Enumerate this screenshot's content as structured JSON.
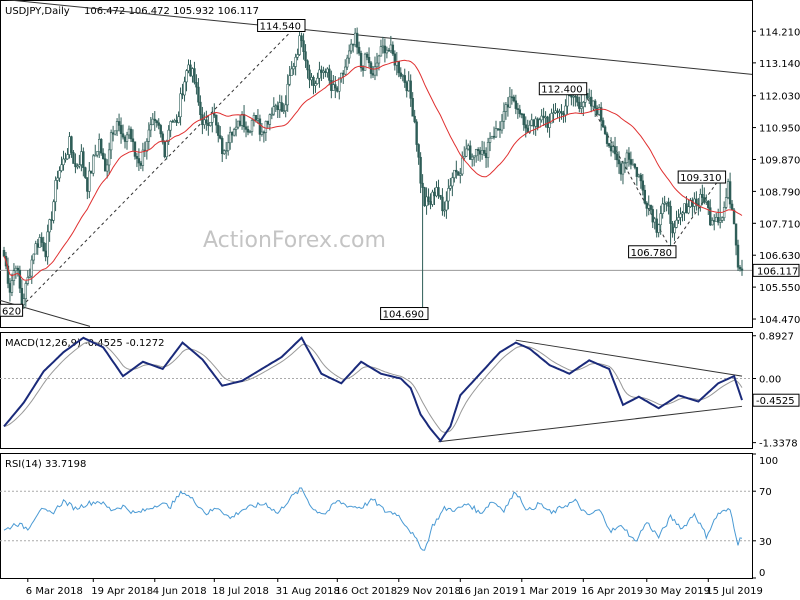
{
  "chart_data": {
    "type": "candlestick",
    "header": {
      "symbol": "USDJPY,Daily",
      "ohlc": "106.472 106.472 105.932 106.117"
    },
    "watermark": "ActionForex.com",
    "price_panel": {
      "ylim": [
        104.2,
        115.2
      ],
      "y_ticks": [
        {
          "v": 114.21,
          "t": "114.210"
        },
        {
          "v": 113.14,
          "t": "113.140"
        },
        {
          "v": 112.03,
          "t": "112.030"
        },
        {
          "v": 110.95,
          "t": "110.950"
        },
        {
          "v": 109.87,
          "t": "109.870"
        },
        {
          "v": 108.79,
          "t": "108.790"
        },
        {
          "v": 107.71,
          "t": "107.710"
        },
        {
          "v": 106.63,
          "t": "106.630"
        },
        {
          "v": 105.55,
          "t": "105.550"
        },
        {
          "v": 104.47,
          "t": "104.470"
        }
      ],
      "current_price": {
        "v": 106.117,
        "t": "106.117"
      },
      "annotations": [
        {
          "x": 0,
          "v": 104.8,
          "t": "620",
          "color": "#000000"
        },
        {
          "x": 149,
          "v": 114.54,
          "t": "114.540",
          "color": "#000000"
        },
        {
          "x": 211,
          "v": 104.69,
          "t": "104.690",
          "color": "#000000"
        },
        {
          "x": 291,
          "v": 112.4,
          "t": "112.400",
          "color": "#000000"
        },
        {
          "x": 336,
          "v": 106.78,
          "t": "106.780",
          "color": "#000000"
        },
        {
          "x": 361,
          "v": 109.31,
          "t": "109.310",
          "color": "#000000"
        }
      ],
      "ma_color": "#e03030",
      "candle_color": "#2e5d57"
    },
    "macd_panel": {
      "title": "MACD(12,26,9) -0.4525 -0.1272",
      "ylim": [
        -1.45,
        0.95
      ],
      "y_ticks": [
        {
          "v": 0.8927,
          "t": "0.8927"
        },
        {
          "v": 0,
          "t": "0.00"
        },
        {
          "v": -1.3378,
          "t": "-1.3378"
        }
      ],
      "current": {
        "v": -0.4525,
        "t": "-0.4525"
      },
      "macd_color": "#1a2a7a",
      "signal_color": "#999999"
    },
    "rsi_panel": {
      "title": "RSI(14) 33.7198",
      "ylim": [
        0,
        100
      ],
      "y_ticks": [
        {
          "v": 100,
          "t": "100"
        },
        {
          "v": 70,
          "t": "70"
        },
        {
          "v": 30,
          "t": "30"
        },
        {
          "v": 0,
          "t": "0"
        }
      ],
      "rsi_color": "#4a9ad4"
    },
    "x_labels": [
      {
        "x": 12,
        "t": "6 Mar 2018"
      },
      {
        "x": 45,
        "t": "19 Apr 2018"
      },
      {
        "x": 76,
        "t": "4 Jun 2018"
      },
      {
        "x": 106,
        "t": "18 Jul 2018"
      },
      {
        "x": 138,
        "t": "31 Aug 2018"
      },
      {
        "x": 168,
        "t": "16 Oct 2018"
      },
      {
        "x": 199,
        "t": "29 Nov 2018"
      },
      {
        "x": 230,
        "t": "16 Jan 2019"
      },
      {
        "x": 261,
        "t": "1 Mar 2019"
      },
      {
        "x": 292,
        "t": "16 Apr 2019"
      },
      {
        "x": 324,
        "t": "30 May 2019"
      },
      {
        "x": 355,
        "t": "15 Jul 2019"
      }
    ],
    "price_waypoints": [
      [
        0,
        106.6
      ],
      [
        3,
        105.5
      ],
      [
        6,
        106.4
      ],
      [
        9,
        105.0
      ],
      [
        12,
        105.8
      ],
      [
        15,
        106.8
      ],
      [
        18,
        107.2
      ],
      [
        21,
        106.8
      ],
      [
        24,
        108.0
      ],
      [
        27,
        109.4
      ],
      [
        30,
        109.8
      ],
      [
        33,
        110.4
      ],
      [
        36,
        109.6
      ],
      [
        39,
        110.0
      ],
      [
        42,
        109.0
      ],
      [
        45,
        109.8
      ],
      [
        48,
        110.5
      ],
      [
        51,
        109.4
      ],
      [
        54,
        110.8
      ],
      [
        57,
        111.2
      ],
      [
        60,
        110.4
      ],
      [
        63,
        110.9
      ],
      [
        66,
        110.0
      ],
      [
        69,
        109.8
      ],
      [
        72,
        110.6
      ],
      [
        75,
        111.0
      ],
      [
        78,
        110.9
      ],
      [
        81,
        110.2
      ],
      [
        84,
        111.3
      ],
      [
        87,
        111.0
      ],
      [
        90,
        112.3
      ],
      [
        93,
        113.1
      ],
      [
        96,
        112.5
      ],
      [
        99,
        111.4
      ],
      [
        102,
        110.9
      ],
      [
        105,
        111.6
      ],
      [
        108,
        110.6
      ],
      [
        111,
        110.0
      ],
      [
        114,
        111.0
      ],
      [
        117,
        110.8
      ],
      [
        120,
        111.4
      ],
      [
        123,
        110.8
      ],
      [
        126,
        111.5
      ],
      [
        129,
        110.9
      ],
      [
        132,
        111.1
      ],
      [
        135,
        111.6
      ],
      [
        138,
        111.8
      ],
      [
        141,
        111.4
      ],
      [
        144,
        112.6
      ],
      [
        147,
        113.4
      ],
      [
        150,
        114.1
      ],
      [
        153,
        113.0
      ],
      [
        156,
        112.4
      ],
      [
        159,
        112.7
      ],
      [
        162,
        113.0
      ],
      [
        165,
        112.2
      ],
      [
        168,
        112.2
      ],
      [
        171,
        112.8
      ],
      [
        174,
        113.4
      ],
      [
        177,
        113.9
      ],
      [
        180,
        113.0
      ],
      [
        183,
        113.3
      ],
      [
        186,
        112.6
      ],
      [
        189,
        113.4
      ],
      [
        192,
        113.7
      ],
      [
        195,
        113.5
      ],
      [
        198,
        113.1
      ],
      [
        201,
        112.7
      ],
      [
        204,
        112.3
      ],
      [
        207,
        111.2
      ],
      [
        210,
        109.2
      ],
      [
        212,
        108.4
      ],
      [
        215,
        108.4
      ],
      [
        218,
        109.0
      ],
      [
        221,
        108.1
      ],
      [
        224,
        108.9
      ],
      [
        227,
        109.5
      ],
      [
        230,
        109.6
      ],
      [
        233,
        110.2
      ],
      [
        236,
        110.0
      ],
      [
        239,
        110.4
      ],
      [
        242,
        109.9
      ],
      [
        245,
        110.7
      ],
      [
        248,
        110.8
      ],
      [
        251,
        111.1
      ],
      [
        254,
        111.7
      ],
      [
        257,
        111.9
      ],
      [
        260,
        111.6
      ],
      [
        263,
        110.7
      ],
      [
        266,
        111.3
      ],
      [
        269,
        110.9
      ],
      [
        272,
        111.4
      ],
      [
        275,
        111.0
      ],
      [
        278,
        111.6
      ],
      [
        281,
        111.4
      ],
      [
        284,
        111.9
      ],
      [
        287,
        112.0
      ],
      [
        290,
        111.8
      ],
      [
        293,
        111.9
      ],
      [
        296,
        111.7
      ],
      [
        299,
        111.6
      ],
      [
        302,
        111.1
      ],
      [
        305,
        110.4
      ],
      [
        308,
        109.9
      ],
      [
        311,
        109.6
      ],
      [
        314,
        110.1
      ],
      [
        317,
        109.7
      ],
      [
        320,
        109.3
      ],
      [
        323,
        108.6
      ],
      [
        326,
        108.2
      ],
      [
        329,
        107.6
      ],
      [
        332,
        108.4
      ],
      [
        335,
        108.1
      ],
      [
        338,
        107.4
      ],
      [
        341,
        107.9
      ],
      [
        344,
        108.3
      ],
      [
        347,
        108.5
      ],
      [
        350,
        108.4
      ],
      [
        353,
        108.6
      ],
      [
        356,
        107.9
      ],
      [
        359,
        108.0
      ],
      [
        362,
        107.9
      ],
      [
        365,
        108.9
      ],
      [
        368,
        107.9
      ],
      [
        370,
        106.4
      ],
      [
        372,
        106.1
      ]
    ],
    "macd_waypoints": [
      [
        0,
        -1.0
      ],
      [
        10,
        -0.5
      ],
      [
        20,
        0.15
      ],
      [
        30,
        0.55
      ],
      [
        40,
        0.85
      ],
      [
        50,
        0.65
      ],
      [
        60,
        0.05
      ],
      [
        70,
        0.35
      ],
      [
        80,
        0.2
      ],
      [
        90,
        0.75
      ],
      [
        100,
        0.4
      ],
      [
        110,
        -0.15
      ],
      [
        120,
        -0.05
      ],
      [
        130,
        0.2
      ],
      [
        140,
        0.45
      ],
      [
        150,
        0.85
      ],
      [
        160,
        0.1
      ],
      [
        170,
        -0.1
      ],
      [
        180,
        0.35
      ],
      [
        190,
        0.1
      ],
      [
        200,
        0.0
      ],
      [
        205,
        -0.2
      ],
      [
        210,
        -0.75
      ],
      [
        215,
        -1.05
      ],
      [
        220,
        -1.3
      ],
      [
        225,
        -1.0
      ],
      [
        230,
        -0.35
      ],
      [
        240,
        0.1
      ],
      [
        250,
        0.55
      ],
      [
        258,
        0.75
      ],
      [
        265,
        0.62
      ],
      [
        275,
        0.28
      ],
      [
        285,
        0.1
      ],
      [
        295,
        0.38
      ],
      [
        305,
        0.2
      ],
      [
        312,
        -0.55
      ],
      [
        320,
        -0.38
      ],
      [
        330,
        -0.62
      ],
      [
        340,
        -0.35
      ],
      [
        350,
        -0.48
      ],
      [
        360,
        -0.1
      ],
      [
        368,
        0.05
      ],
      [
        372,
        -0.45
      ]
    ],
    "rsi_waypoints": [
      [
        0,
        38
      ],
      [
        6,
        44
      ],
      [
        12,
        40
      ],
      [
        18,
        55
      ],
      [
        24,
        52
      ],
      [
        30,
        62
      ],
      [
        36,
        56
      ],
      [
        42,
        60
      ],
      [
        48,
        62
      ],
      [
        54,
        55
      ],
      [
        60,
        58
      ],
      [
        66,
        52
      ],
      [
        72,
        55
      ],
      [
        78,
        60
      ],
      [
        84,
        58
      ],
      [
        90,
        70
      ],
      [
        96,
        62
      ],
      [
        102,
        52
      ],
      [
        108,
        57
      ],
      [
        114,
        48
      ],
      [
        120,
        55
      ],
      [
        126,
        58
      ],
      [
        132,
        60
      ],
      [
        138,
        52
      ],
      [
        144,
        64
      ],
      [
        150,
        72
      ],
      [
        156,
        55
      ],
      [
        162,
        52
      ],
      [
        168,
        62
      ],
      [
        174,
        58
      ],
      [
        180,
        57
      ],
      [
        186,
        63
      ],
      [
        192,
        54
      ],
      [
        198,
        52
      ],
      [
        204,
        40
      ],
      [
        208,
        30
      ],
      [
        212,
        22
      ],
      [
        216,
        42
      ],
      [
        222,
        56
      ],
      [
        228,
        55
      ],
      [
        234,
        60
      ],
      [
        240,
        52
      ],
      [
        246,
        62
      ],
      [
        252,
        55
      ],
      [
        258,
        70
      ],
      [
        264,
        54
      ],
      [
        270,
        60
      ],
      [
        276,
        52
      ],
      [
        282,
        58
      ],
      [
        288,
        62
      ],
      [
        294,
        50
      ],
      [
        300,
        55
      ],
      [
        306,
        38
      ],
      [
        312,
        42
      ],
      [
        318,
        29
      ],
      [
        324,
        45
      ],
      [
        330,
        33
      ],
      [
        336,
        49
      ],
      [
        342,
        40
      ],
      [
        348,
        52
      ],
      [
        354,
        34
      ],
      [
        360,
        52
      ],
      [
        366,
        55
      ],
      [
        370,
        28
      ],
      [
        372,
        34
      ]
    ]
  }
}
